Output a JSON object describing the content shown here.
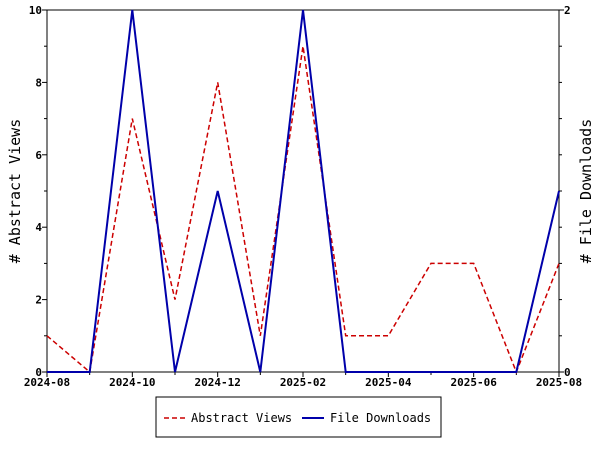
{
  "chart_data": {
    "type": "line",
    "x_dates": [
      "2024-08",
      "2024-09",
      "2024-10",
      "2024-11",
      "2024-12",
      "2025-01",
      "2025-02",
      "2025-03",
      "2025-04",
      "2025-05",
      "2025-06",
      "2025-07",
      "2025-08"
    ],
    "x_tick_labels": [
      "2024-08",
      "2024-10",
      "2024-12",
      "2025-02",
      "2025-04",
      "2025-06",
      "2025-08"
    ],
    "ylabel_left": "# Abstract Views",
    "ylabel_right": "# File Downloads",
    "ylim_left": [
      0,
      10
    ],
    "ylim_right": [
      0,
      2
    ],
    "left_ticks": [
      "0",
      "2",
      "4",
      "6",
      "8",
      "10"
    ],
    "right_ticks": [
      "0",
      "2"
    ],
    "series": [
      {
        "name": "Abstract Views",
        "axis": "left",
        "color": "#cc0000",
        "style": "dashed",
        "values": [
          1,
          0,
          7,
          2,
          8,
          1,
          9,
          1,
          1,
          3,
          3,
          0,
          3
        ]
      },
      {
        "name": "File Downloads",
        "axis": "right",
        "color": "#0000aa",
        "style": "solid",
        "values": [
          0,
          0,
          2,
          0,
          1,
          0,
          2,
          0,
          0,
          0,
          0,
          0,
          1
        ]
      }
    ],
    "grid": false,
    "legend_position": "bottom-center"
  }
}
